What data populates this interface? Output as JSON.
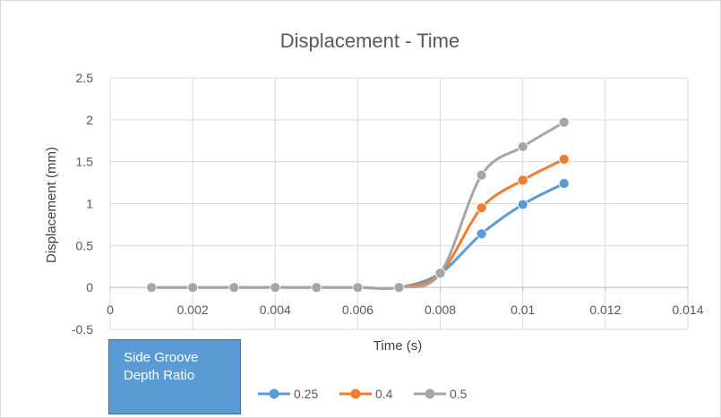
{
  "chart_data": {
    "type": "line",
    "title": "Displacement - Time",
    "xlabel": "Time (s)",
    "ylabel": "Displacement (mm)",
    "xlim": [
      0,
      0.014
    ],
    "ylim": [
      -0.5,
      2.5
    ],
    "x_ticks": [
      "0",
      "0.002",
      "0.004",
      "0.006",
      "0.008",
      "0.01",
      "0.012",
      "0.014"
    ],
    "y_ticks": [
      "-0.5",
      "0",
      "0.5",
      "1",
      "1.5",
      "2",
      "2.5"
    ],
    "x": [
      0.001,
      0.002,
      0.003,
      0.004,
      0.005,
      0.006,
      0.007,
      0.008,
      0.009,
      0.01,
      0.011
    ],
    "series": [
      {
        "name": "0.25",
        "color": "#5b9bd5",
        "values": [
          0,
          0,
          0,
          0,
          0,
          0,
          0,
          0.17,
          0.64,
          0.99,
          1.24
        ]
      },
      {
        "name": "0.4",
        "color": "#ed7d31",
        "values": [
          0,
          0,
          0,
          0,
          0,
          0,
          0,
          0.17,
          0.95,
          1.28,
          1.53
        ]
      },
      {
        "name": "0.5",
        "color": "#a5a5a5",
        "values": [
          0,
          0,
          0,
          0,
          0,
          0,
          0,
          0.17,
          1.34,
          1.68,
          1.97
        ]
      }
    ],
    "grid": true,
    "legend": {
      "placement": "bottom",
      "title_lines": [
        "Side Groove",
        "Depth Ratio"
      ]
    }
  }
}
